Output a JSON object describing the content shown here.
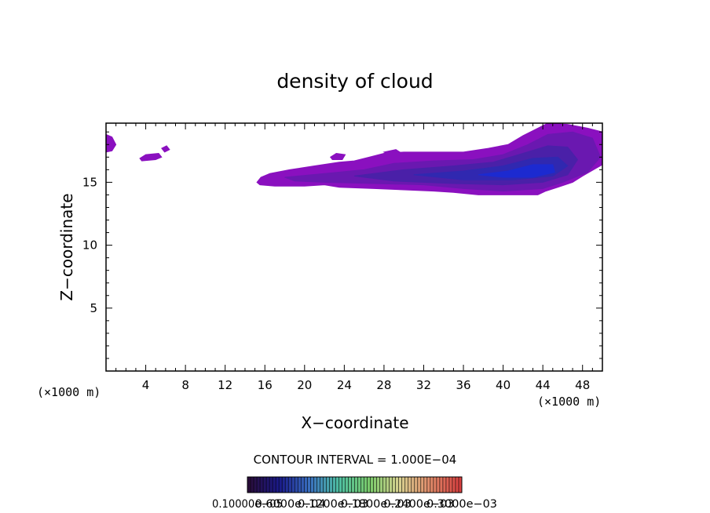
{
  "chart_data": {
    "type": "contour",
    "title": "density of cloud",
    "xlabel": "X−coordinate",
    "ylabel": "Z−coordinate",
    "x_unit_left": "(×1000 m)",
    "x_unit_right": "(×1000 m)",
    "xlim": [
      0,
      50
    ],
    "ylim": [
      0,
      19.7
    ],
    "x_ticks": [
      "4",
      "8",
      "12",
      "16",
      "20",
      "24",
      "28",
      "32",
      "36",
      "40",
      "44",
      "48"
    ],
    "y_ticks": [
      "5",
      "10",
      "15"
    ],
    "x_tick_values": [
      4,
      8,
      12,
      16,
      20,
      24,
      28,
      32,
      36,
      40,
      44,
      48
    ],
    "y_tick_values": [
      5,
      10,
      15
    ],
    "contour_interval_text": "CONTOUR INTERVAL = 1.000E−04",
    "colorbar_labels": [
      "0.10000e−05",
      "0.6000e−04",
      "0.1200e−03",
      "0.1800e−03",
      "0.2400e−03",
      "0.3000e−03"
    ],
    "colorbar_colors": [
      "#2a0d3a",
      "#1a1a8a",
      "#3a6fbf",
      "#4fbfa0",
      "#7ac96a",
      "#d8d090",
      "#e08b6a",
      "#d84040"
    ],
    "regions": [
      {
        "name": "cloud-outer",
        "color": "#8a10bf",
        "points": [
          [
            15.2,
            15.0
          ],
          [
            15.6,
            15.4
          ],
          [
            16.5,
            15.7
          ],
          [
            18.5,
            16.0
          ],
          [
            21.0,
            16.3
          ],
          [
            23.5,
            16.6
          ],
          [
            25.0,
            16.7
          ],
          [
            26.5,
            17.0
          ],
          [
            28.0,
            17.3
          ],
          [
            30.0,
            17.4
          ],
          [
            33.0,
            17.4
          ],
          [
            36.0,
            17.4
          ],
          [
            38.5,
            17.7
          ],
          [
            40.5,
            18.0
          ],
          [
            42.0,
            18.7
          ],
          [
            43.5,
            19.3
          ],
          [
            44.5,
            19.7
          ],
          [
            46.5,
            19.6
          ],
          [
            48.5,
            19.3
          ],
          [
            50.0,
            19.0
          ],
          [
            50.0,
            16.4
          ],
          [
            48.0,
            15.5
          ],
          [
            47.0,
            15.0
          ],
          [
            45.5,
            14.6
          ],
          [
            44.3,
            14.3
          ],
          [
            43.5,
            14.0
          ],
          [
            40.0,
            14.0
          ],
          [
            37.5,
            14.0
          ],
          [
            35.0,
            14.2
          ],
          [
            33.0,
            14.3
          ],
          [
            30.0,
            14.4
          ],
          [
            27.0,
            14.5
          ],
          [
            23.5,
            14.6
          ],
          [
            22.0,
            14.8
          ],
          [
            20.0,
            14.7
          ],
          [
            17.0,
            14.7
          ],
          [
            15.5,
            14.8
          ]
        ]
      },
      {
        "name": "cloud-level-2",
        "color": "#6a18b0",
        "points": [
          [
            18.0,
            15.4
          ],
          [
            22.0,
            15.7
          ],
          [
            26.0,
            16.0
          ],
          [
            29.0,
            16.5
          ],
          [
            33.0,
            16.7
          ],
          [
            37.0,
            16.8
          ],
          [
            40.0,
            17.2
          ],
          [
            42.5,
            18.0
          ],
          [
            44.5,
            18.8
          ],
          [
            47.0,
            19.0
          ],
          [
            49.0,
            18.5
          ],
          [
            49.8,
            17.0
          ],
          [
            48.5,
            15.8
          ],
          [
            46.0,
            15.0
          ],
          [
            44.0,
            14.5
          ],
          [
            40.0,
            14.3
          ],
          [
            36.0,
            14.5
          ],
          [
            32.0,
            14.8
          ],
          [
            27.0,
            14.9
          ],
          [
            22.0,
            15.0
          ],
          [
            19.0,
            15.1
          ]
        ]
      },
      {
        "name": "cloud-level-3",
        "color": "#4a20a8",
        "points": [
          [
            25.0,
            15.5
          ],
          [
            30.0,
            16.0
          ],
          [
            35.0,
            16.3
          ],
          [
            39.0,
            16.6
          ],
          [
            42.0,
            17.3
          ],
          [
            44.5,
            17.9
          ],
          [
            46.5,
            17.8
          ],
          [
            47.5,
            16.8
          ],
          [
            46.5,
            15.6
          ],
          [
            44.0,
            15.0
          ],
          [
            40.0,
            14.8
          ],
          [
            35.0,
            14.9
          ],
          [
            29.0,
            15.1
          ]
        ]
      },
      {
        "name": "cloud-level-4",
        "color": "#3028b0",
        "points": [
          [
            31.0,
            15.6
          ],
          [
            36.0,
            15.9
          ],
          [
            40.0,
            16.3
          ],
          [
            43.0,
            16.9
          ],
          [
            45.5,
            17.0
          ],
          [
            46.5,
            16.3
          ],
          [
            45.0,
            15.5
          ],
          [
            41.0,
            15.2
          ],
          [
            36.0,
            15.2
          ]
        ]
      },
      {
        "name": "cloud-core",
        "color": "#1c2ad0",
        "points": [
          [
            37.5,
            15.6
          ],
          [
            40.5,
            15.9
          ],
          [
            43.0,
            16.4
          ],
          [
            45.0,
            16.4
          ],
          [
            45.2,
            15.8
          ],
          [
            43.0,
            15.4
          ],
          [
            40.0,
            15.4
          ]
        ]
      },
      {
        "name": "cloud-blob-left-edge",
        "color": "#8a10bf",
        "points": [
          [
            0,
            18.8
          ],
          [
            0.6,
            18.6
          ],
          [
            1.0,
            18.0
          ],
          [
            0.6,
            17.5
          ],
          [
            0,
            17.4
          ]
        ]
      },
      {
        "name": "cloud-blob-small-1",
        "color": "#8a10bf",
        "points": [
          [
            3.4,
            16.9
          ],
          [
            4.0,
            17.2
          ],
          [
            5.3,
            17.3
          ],
          [
            5.6,
            17.0
          ],
          [
            5.0,
            16.8
          ],
          [
            3.6,
            16.7
          ]
        ]
      },
      {
        "name": "cloud-blob-small-2",
        "color": "#8a10bf",
        "points": [
          [
            5.6,
            17.7
          ],
          [
            6.1,
            17.9
          ],
          [
            6.4,
            17.6
          ],
          [
            5.9,
            17.4
          ]
        ]
      },
      {
        "name": "cloud-blob-small-3",
        "color": "#8a10bf",
        "points": [
          [
            22.6,
            17.0
          ],
          [
            23.2,
            17.3
          ],
          [
            24.1,
            17.2
          ],
          [
            23.8,
            16.8
          ],
          [
            22.8,
            16.8
          ]
        ]
      },
      {
        "name": "cloud-blob-small-4",
        "color": "#8a10bf",
        "points": [
          [
            28.0,
            17.4
          ],
          [
            29.2,
            17.6
          ],
          [
            29.8,
            17.3
          ],
          [
            28.5,
            17.2
          ]
        ]
      }
    ]
  }
}
